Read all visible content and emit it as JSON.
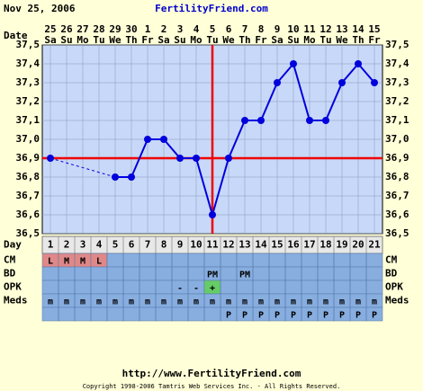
{
  "header": {
    "date": "Nov 25, 2006",
    "site": "FertilityFriend.com",
    "date_label": "Date"
  },
  "chart_data": {
    "type": "line",
    "x": [
      1,
      2,
      3,
      4,
      5,
      6,
      7,
      8,
      9,
      10,
      11,
      12,
      13,
      14,
      15,
      16,
      17,
      18,
      19,
      20,
      21
    ],
    "dates": [
      "25",
      "26",
      "27",
      "28",
      "29",
      "30",
      "1",
      "2",
      "3",
      "4",
      "5",
      "6",
      "7",
      "8",
      "9",
      "10",
      "11",
      "12",
      "13",
      "14",
      "15"
    ],
    "weekdays": [
      "Sa",
      "Su",
      "Mo",
      "Tu",
      "We",
      "Th",
      "Fr",
      "Sa",
      "Su",
      "Mo",
      "Tu",
      "We",
      "Th",
      "Fr",
      "Sa",
      "Su",
      "Mo",
      "Tu",
      "We",
      "Th",
      "Fr"
    ],
    "series": [
      {
        "color": "#0000dd",
        "values": [
          36.9,
          null,
          null,
          null,
          36.8,
          36.8,
          37.0,
          37.0,
          36.9,
          36.9,
          36.6,
          36.9,
          37.1,
          37.1,
          37.3,
          37.4,
          37.1,
          37.1,
          37.3,
          37.4,
          37.3
        ]
      }
    ],
    "xlim": [
      0.5,
      21.5
    ],
    "ylim": [
      36.5,
      37.5
    ],
    "yticks": [
      {
        "value": 37.5,
        "label": "37,5"
      },
      {
        "value": 37.4,
        "label": "37,4"
      },
      {
        "value": 37.3,
        "label": "37,3"
      },
      {
        "value": 37.2,
        "label": "37,2"
      },
      {
        "value": 37.1,
        "label": "37,1"
      },
      {
        "value": 37.0,
        "label": "37,0"
      },
      {
        "value": 36.9,
        "label": "36,9"
      },
      {
        "value": 36.8,
        "label": "36,8"
      },
      {
        "value": 36.7,
        "label": "36,7"
      },
      {
        "value": 36.6,
        "label": "36,6"
      },
      {
        "value": 36.5,
        "label": "36,5"
      }
    ],
    "coverline": 36.9,
    "ovulation_day": 11,
    "line_color": "#ee0000",
    "grid": true
  },
  "table": {
    "day_label": "Day",
    "rows": [
      {
        "label": "CM",
        "cells": [
          "L",
          "M",
          "M",
          "L",
          null,
          null,
          null,
          null,
          null,
          null,
          null,
          null,
          null,
          null,
          null,
          null,
          null,
          null,
          null,
          null,
          null
        ],
        "cell_colors": [
          "#e08888",
          "#e08888",
          "#e08888",
          "#e08888",
          null,
          null,
          null,
          null,
          null,
          null,
          null,
          null,
          null,
          null,
          null,
          null,
          null,
          null,
          null,
          null,
          null
        ]
      },
      {
        "label": "BD",
        "cells": [
          null,
          null,
          null,
          null,
          null,
          null,
          null,
          null,
          null,
          null,
          "PM",
          null,
          "PM",
          null,
          null,
          null,
          null,
          null,
          null,
          null,
          null
        ]
      },
      {
        "label": "OPK",
        "cells": [
          null,
          null,
          null,
          null,
          null,
          null,
          null,
          null,
          "-",
          "-",
          "+",
          null,
          null,
          null,
          null,
          null,
          null,
          null,
          null,
          null,
          null
        ],
        "cell_colors": [
          null,
          null,
          null,
          null,
          null,
          null,
          null,
          null,
          null,
          null,
          "#66cc66",
          null,
          null,
          null,
          null,
          null,
          null,
          null,
          null,
          null,
          null
        ]
      },
      {
        "label": "Meds",
        "cells": [
          "m",
          "m",
          "m",
          "m",
          "m",
          "m",
          "m",
          "m",
          "m",
          "m",
          "m",
          "m",
          "m",
          "m",
          "m",
          "m",
          "m",
          "m",
          "m",
          "m",
          "m"
        ]
      },
      {
        "label": null,
        "cells": [
          null,
          null,
          null,
          null,
          null,
          null,
          null,
          null,
          null,
          null,
          null,
          "P",
          "P",
          "P",
          "P",
          "P",
          "P",
          "P",
          "P",
          "P",
          "P"
        ]
      }
    ]
  },
  "footer": {
    "url": "http://www.FertilityFriend.com",
    "copyright": "Copyright 1998-2006 Tamtris Web Services Inc. - All Rights Reserved."
  }
}
